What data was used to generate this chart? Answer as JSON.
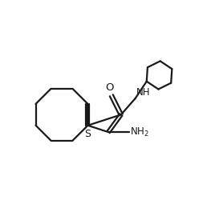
{
  "bg_color": "#ffffff",
  "line_color": "#1a1a1a",
  "line_width": 1.6,
  "figsize": [
    2.58,
    2.5
  ],
  "dpi": 100,
  "xlim": [
    0,
    10
  ],
  "ylim": [
    0,
    10
  ]
}
